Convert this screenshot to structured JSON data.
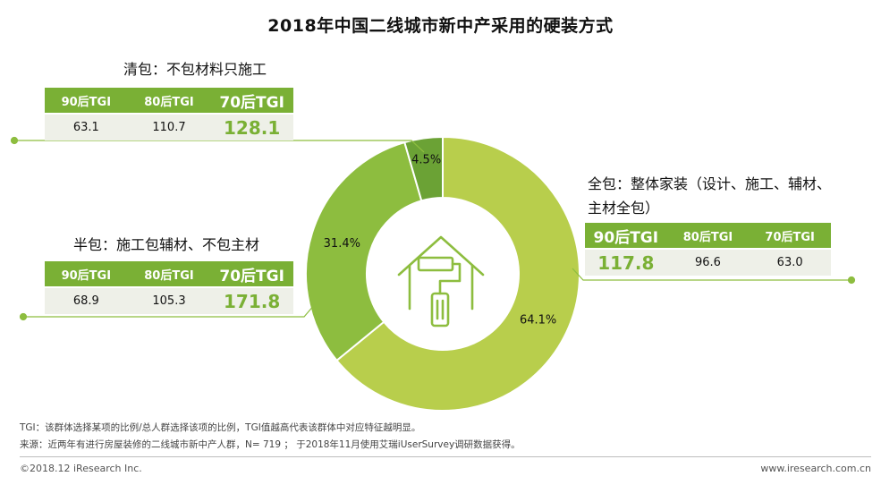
{
  "chart_data": {
    "type": "pie",
    "title": "2018年中国二线城市新中产采用的硬装方式",
    "segments": [
      {
        "label": "全包",
        "value": 64.1,
        "display": "64.1%",
        "color": "#b8ce4c"
      },
      {
        "label": "半包",
        "value": 31.4,
        "display": "31.4%",
        "color": "#8dbd3f"
      },
      {
        "label": "清包",
        "value": 4.5,
        "display": "4.5%",
        "color": "#6ba235"
      }
    ],
    "groups": [
      {
        "label": "清包：不包材料只施工",
        "headers": [
          "90后TGI",
          "80后TGI",
          "70后TGI"
        ],
        "values": [
          "63.1",
          "110.7",
          "128.1"
        ],
        "highlight": 2
      },
      {
        "label": "半包：施工包辅材、不包主材",
        "headers": [
          "90后TGI",
          "80后TGI",
          "70后TGI"
        ],
        "values": [
          "68.9",
          "105.3",
          "171.8"
        ],
        "highlight": 2
      },
      {
        "label_line1": "全包：整体家装（设计、施工、辅材、",
        "label_line2": "主材全包）",
        "headers": [
          "90后TGI",
          "80后TGI",
          "70后TGI"
        ],
        "values": [
          "117.8",
          "96.6",
          "63.0"
        ],
        "highlight": 0
      }
    ]
  },
  "footnotes": {
    "note": "TGI：该群体选择某项的比例/总人群选择该项的比例，TGI值越高代表该群体中对应特征越明显。",
    "source": "来源：近两年有进行房屋装修的二线城市新中产人群，N= 719 ； 于2018年11月使用艾瑞iUserSurvey调研数据获得。"
  },
  "footer": {
    "copyright": "©2018.12 iResearch Inc.",
    "website": "www.iresearch.com.cn"
  },
  "icons": {
    "center": "house-paint-roller-icon"
  },
  "colors": {
    "accent": "#7ab035",
    "table_bg": "#eef0e8",
    "connector": "#8dbd3f"
  }
}
